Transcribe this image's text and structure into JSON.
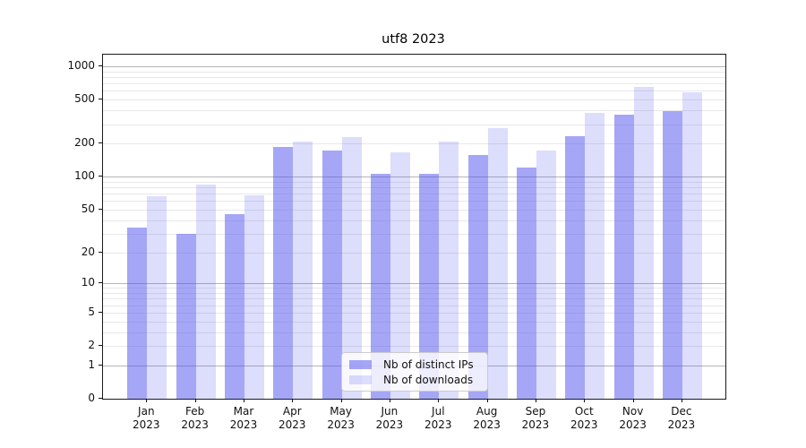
{
  "title": "utf8 2023",
  "chart_data": {
    "type": "bar",
    "title": "utf8 2023",
    "categories": [
      "Jan 2023",
      "Feb 2023",
      "Mar 2023",
      "Apr 2023",
      "May 2023",
      "Jun 2023",
      "Jul 2023",
      "Aug 2023",
      "Sep 2023",
      "Oct 2023",
      "Nov 2023",
      "Dec 2023"
    ],
    "series": [
      {
        "name": "Nb of distinct IPs",
        "color": "rgba(85,85,240,0.52)",
        "values": [
          34,
          30,
          45,
          187,
          174,
          106,
          107,
          158,
          122,
          232,
          363,
          391
        ]
      },
      {
        "name": "Nb of downloads",
        "color": "rgba(85,85,240,0.20)",
        "values": [
          66,
          84,
          68,
          209,
          227,
          166,
          209,
          277,
          173,
          382,
          648,
          580
        ]
      }
    ],
    "yscale": "log1p",
    "ylim": [
      0,
      1250
    ],
    "yticks": [
      1000,
      500,
      200,
      100,
      50,
      20,
      10,
      5,
      2,
      1,
      0
    ],
    "grid_major": [
      1,
      10,
      100,
      1000
    ],
    "grid_minor": [
      2,
      3,
      4,
      5,
      6,
      7,
      8,
      9,
      20,
      30,
      40,
      50,
      60,
      70,
      80,
      90,
      200,
      300,
      400,
      500,
      600,
      700,
      800,
      900
    ],
    "legend_position": "lower center",
    "colors": {
      "bar_base": "#5555f0",
      "grid_major": "#b5b5b5",
      "grid_minor": "#e8e8e8",
      "spine": "#1a1a1a"
    }
  }
}
